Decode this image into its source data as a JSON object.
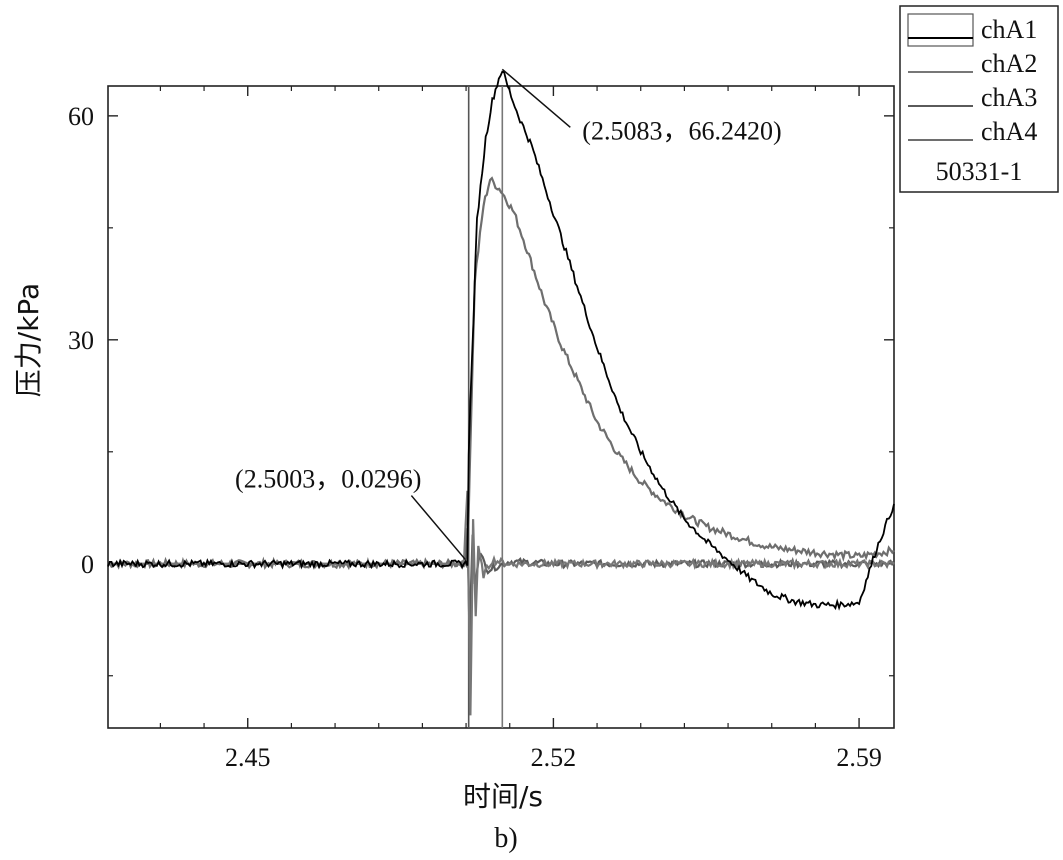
{
  "chart_data": {
    "type": "line",
    "xlabel": "时间/s",
    "ylabel": "压力/kPa",
    "caption": "b)",
    "xlim": [
      2.418,
      2.598
    ],
    "ylim": [
      -22,
      64
    ],
    "x_ticks": [
      2.45,
      2.52,
      2.59
    ],
    "x_tick_labels": [
      "2.45",
      "2.52",
      "2.59"
    ],
    "y_ticks": [
      0,
      30,
      60
    ],
    "y_tick_labels": [
      "0",
      "30",
      "60"
    ],
    "grid": false,
    "legend": {
      "placement": "top-right",
      "entries": [
        "chA1",
        "chA2",
        "chA3",
        "chA4"
      ],
      "note": "50331-1"
    },
    "colors": {
      "chA1": "#000000",
      "chA2": "#777777",
      "chA3": "#5a5a5a",
      "chA4": "#6e6e6e"
    },
    "series": [
      {
        "name": "chA1",
        "x": [
          2.418,
          2.4995,
          2.5003,
          2.5006,
          2.5025,
          2.5045,
          2.506,
          2.5075,
          2.5083,
          2.5095,
          2.512,
          2.515,
          2.52,
          2.525,
          2.53,
          2.535,
          2.54,
          2.545,
          2.55,
          2.555,
          2.56,
          2.565,
          2.57,
          2.575,
          2.58,
          2.585,
          2.59,
          2.594,
          2.598
        ],
        "y": [
          0,
          0,
          0.0296,
          15,
          46,
          57,
          62,
          65,
          66.2,
          64,
          60,
          56,
          47,
          38,
          29,
          21,
          15,
          10,
          6,
          3,
          0.5,
          -2,
          -4,
          -5,
          -5.5,
          -5.5,
          -5.2,
          2,
          8
        ]
      },
      {
        "name": "chA2",
        "x": [
          2.418,
          2.4995,
          2.5003,
          2.501,
          2.5016,
          2.5022,
          2.5028,
          2.504,
          2.506,
          2.51,
          2.52,
          2.54,
          2.56,
          2.58,
          2.598
        ],
        "y": [
          0,
          0,
          10,
          -20,
          6,
          -7,
          2,
          -1.5,
          0.5,
          0,
          0,
          0,
          0,
          0,
          0
        ]
      },
      {
        "name": "chA3",
        "x": [
          2.418,
          2.4998,
          2.5003,
          2.5008,
          2.5015,
          2.502,
          2.503,
          2.505,
          2.51,
          2.52,
          2.54,
          2.56,
          2.58,
          2.598
        ],
        "y": [
          0,
          0,
          5,
          -10,
          4,
          -3,
          1.5,
          -0.8,
          0.3,
          0,
          0,
          0,
          0,
          0
        ]
      },
      {
        "name": "chA4",
        "x": [
          2.418,
          2.4995,
          2.5003,
          2.5008,
          2.502,
          2.504,
          2.5055,
          2.508,
          2.511,
          2.514,
          2.518,
          2.522,
          2.526,
          2.53,
          2.535,
          2.54,
          2.545,
          2.55,
          2.555,
          2.56,
          2.565,
          2.57,
          2.58,
          2.59,
          2.598
        ],
        "y": [
          0,
          0,
          0,
          12,
          38,
          48,
          51.5,
          50,
          47,
          42,
          35,
          29,
          24,
          19,
          14.5,
          11,
          8.5,
          6.5,
          5,
          4,
          3,
          2.2,
          1.5,
          1,
          1.8
        ]
      }
    ],
    "vertical_markers": [
      {
        "x": 2.5006,
        "color": "#555555"
      },
      {
        "x": 2.5083,
        "color": "#777777"
      }
    ],
    "annotations": [
      {
        "text": "(2.5083，66.2420)",
        "x": 2.5083,
        "y": 66.242
      },
      {
        "text": "(2.5003，0.0296)",
        "x": 2.5003,
        "y": 0.0296
      }
    ]
  }
}
